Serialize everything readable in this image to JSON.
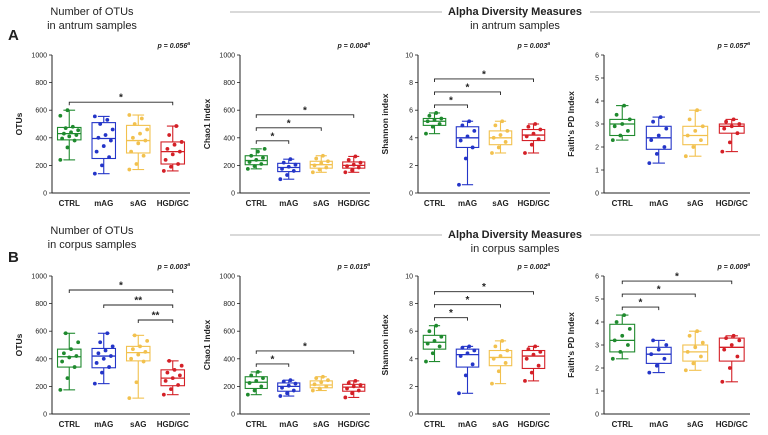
{
  "colors": {
    "CTRL": "#1f8a2e",
    "mAG": "#2435c8",
    "sAG": "#f2c14e",
    "HGD/GC": "#d42027",
    "axis": "#222222",
    "rule": "#9a9a9a"
  },
  "headers": {
    "A": {
      "line1": "Number of OTUs",
      "line2": "in antrum samples"
    },
    "B": {
      "line1": "Number of OTUs",
      "line2": "in corpus samples"
    },
    "C": {
      "line1": "Alpha Diversity Measures",
      "line2": "in antrum samples"
    },
    "D": {
      "line1": "Alpha Diversity Measures",
      "line2": "in corpus samples"
    }
  },
  "chart_data": [
    {
      "id": "A",
      "type": "box",
      "letter": "A",
      "ylabel": "OTUs",
      "ylim": [
        0,
        1000
      ],
      "yticks": [
        0,
        200,
        400,
        600,
        800,
        1000
      ],
      "categories": [
        "CTRL",
        "mAG",
        "sAG",
        "HGD/GC"
      ],
      "pvalue": "p = 0.056",
      "pvalue_sup": "a",
      "boxes": [
        {
          "min": 240,
          "q1": 385,
          "median": 430,
          "q3": 475,
          "max": 600,
          "points": [
            240,
            330,
            380,
            395,
            410,
            420,
            430,
            440,
            455,
            470,
            480,
            560,
            600
          ]
        },
        {
          "min": 140,
          "q1": 250,
          "median": 395,
          "q3": 510,
          "max": 555,
          "points": [
            140,
            200,
            260,
            300,
            340,
            380,
            400,
            420,
            460,
            500,
            530,
            555
          ]
        },
        {
          "min": 170,
          "q1": 290,
          "median": 380,
          "q3": 490,
          "max": 565,
          "points": [
            170,
            210,
            270,
            300,
            360,
            380,
            400,
            430,
            460,
            500,
            540,
            565
          ]
        },
        {
          "min": 160,
          "q1": 210,
          "median": 300,
          "q3": 370,
          "max": 485,
          "points": [
            160,
            190,
            210,
            240,
            280,
            300,
            320,
            350,
            370,
            420,
            485
          ]
        }
      ],
      "sig": [
        {
          "from": 0,
          "to": 3,
          "label": "*"
        }
      ]
    },
    {
      "id": "B",
      "type": "box",
      "letter": "B",
      "ylabel": "OTUs",
      "ylim": [
        0,
        1000
      ],
      "yticks": [
        0,
        200,
        400,
        600,
        800,
        1000
      ],
      "categories": [
        "CTRL",
        "mAG",
        "sAG",
        "HGD/GC"
      ],
      "pvalue": "p = 0.003",
      "pvalue_sup": "a",
      "boxes": [
        {
          "min": 175,
          "q1": 340,
          "median": 415,
          "q3": 470,
          "max": 585,
          "points": [
            175,
            260,
            340,
            380,
            410,
            420,
            440,
            470,
            520,
            585
          ]
        },
        {
          "min": 220,
          "q1": 335,
          "median": 420,
          "q3": 475,
          "max": 585,
          "points": [
            220,
            300,
            340,
            370,
            400,
            420,
            440,
            460,
            490,
            520,
            585
          ]
        },
        {
          "min": 115,
          "q1": 385,
          "median": 445,
          "q3": 490,
          "max": 570,
          "points": [
            115,
            230,
            380,
            400,
            430,
            450,
            470,
            490,
            530,
            570
          ]
        },
        {
          "min": 140,
          "q1": 205,
          "median": 260,
          "q3": 320,
          "max": 385,
          "points": [
            140,
            180,
            210,
            240,
            260,
            280,
            300,
            320,
            350,
            385
          ]
        }
      ],
      "sig": [
        {
          "from": 0,
          "to": 3,
          "label": "*"
        },
        {
          "from": 1,
          "to": 3,
          "label": "**"
        },
        {
          "from": 2,
          "to": 3,
          "label": "**"
        }
      ]
    },
    {
      "id": "C1",
      "type": "box",
      "ylabel": "Chao1 Index",
      "ylim": [
        0,
        1000
      ],
      "yticks": [
        0,
        200,
        400,
        600,
        800,
        1000
      ],
      "categories": [
        "CTRL",
        "mAG",
        "sAG",
        "HGD/GC"
      ],
      "pvalue": "p = 0.004",
      "pvalue_sup": "a",
      "boxes": [
        {
          "min": 175,
          "q1": 205,
          "median": 235,
          "q3": 270,
          "max": 320,
          "points": [
            175,
            195,
            210,
            225,
            240,
            255,
            270,
            300,
            320
          ]
        },
        {
          "min": 100,
          "q1": 155,
          "median": 185,
          "q3": 215,
          "max": 245,
          "points": [
            100,
            130,
            160,
            175,
            190,
            205,
            220,
            245
          ]
        },
        {
          "min": 150,
          "q1": 180,
          "median": 205,
          "q3": 230,
          "max": 270,
          "points": [
            150,
            170,
            185,
            200,
            215,
            230,
            250,
            270
          ]
        },
        {
          "min": 150,
          "q1": 180,
          "median": 200,
          "q3": 225,
          "max": 265,
          "points": [
            150,
            165,
            185,
            195,
            205,
            220,
            240,
            265
          ]
        }
      ],
      "sig": [
        {
          "from": 0,
          "to": 1,
          "label": "*"
        },
        {
          "from": 0,
          "to": 2,
          "label": "*"
        },
        {
          "from": 0,
          "to": 3,
          "label": "*"
        }
      ]
    },
    {
      "id": "C2",
      "type": "box",
      "ylabel": "Shannon index",
      "ylim": [
        0,
        10
      ],
      "yticks": [
        0,
        2,
        4,
        6,
        8,
        10
      ],
      "categories": [
        "CTRL",
        "mAG",
        "sAG",
        "HGD/GC"
      ],
      "pvalue": "p = 0.003",
      "pvalue_sup": "a",
      "boxes": [
        {
          "min": 4.3,
          "q1": 4.9,
          "median": 5.2,
          "q3": 5.4,
          "max": 5.8,
          "points": [
            4.3,
            4.8,
            5.0,
            5.2,
            5.3,
            5.4,
            5.6,
            5.8
          ]
        },
        {
          "min": 0.6,
          "q1": 3.3,
          "median": 4.0,
          "q3": 4.8,
          "max": 5.2,
          "points": [
            0.6,
            2.5,
            3.3,
            3.8,
            4.1,
            4.5,
            4.9,
            5.2
          ]
        },
        {
          "min": 2.9,
          "q1": 3.5,
          "median": 4.0,
          "q3": 4.5,
          "max": 5.2,
          "points": [
            2.9,
            3.3,
            3.7,
            4.0,
            4.2,
            4.5,
            4.9,
            5.2
          ]
        },
        {
          "min": 2.9,
          "q1": 3.8,
          "median": 4.2,
          "q3": 4.6,
          "max": 5.0,
          "points": [
            2.9,
            3.5,
            3.9,
            4.1,
            4.3,
            4.6,
            4.8,
            5.0
          ]
        }
      ],
      "sig": [
        {
          "from": 0,
          "to": 1,
          "label": "*"
        },
        {
          "from": 0,
          "to": 2,
          "label": "*"
        },
        {
          "from": 0,
          "to": 3,
          "label": "*"
        }
      ]
    },
    {
      "id": "C3",
      "type": "box",
      "ylabel": "Faith's PD Index",
      "ylim": [
        0,
        6
      ],
      "yticks": [
        0,
        1,
        2,
        3,
        4,
        5,
        6
      ],
      "categories": [
        "CTRL",
        "mAG",
        "sAG",
        "HGD/GC"
      ],
      "pvalue": "p = 0.057",
      "pvalue_sup": "a",
      "boxes": [
        {
          "min": 2.3,
          "q1": 2.5,
          "median": 3.0,
          "q3": 3.2,
          "max": 3.8,
          "points": [
            2.3,
            2.5,
            2.7,
            2.9,
            3.0,
            3.2,
            3.4,
            3.8
          ]
        },
        {
          "min": 1.3,
          "q1": 1.9,
          "median": 2.4,
          "q3": 2.9,
          "max": 3.3,
          "points": [
            1.3,
            1.7,
            2.0,
            2.3,
            2.5,
            2.8,
            3.1,
            3.3
          ]
        },
        {
          "min": 1.6,
          "q1": 2.1,
          "median": 2.5,
          "q3": 2.9,
          "max": 3.6,
          "points": [
            1.6,
            2.0,
            2.3,
            2.5,
            2.7,
            2.9,
            3.2,
            3.6
          ]
        },
        {
          "min": 1.8,
          "q1": 2.6,
          "median": 2.9,
          "q3": 3.0,
          "max": 3.2,
          "points": [
            1.8,
            2.2,
            2.6,
            2.8,
            2.9,
            3.0,
            3.1,
            3.2
          ]
        }
      ],
      "sig": []
    },
    {
      "id": "D1",
      "type": "box",
      "ylabel": "Chao1 Index",
      "ylim": [
        0,
        1000
      ],
      "yticks": [
        0,
        200,
        400,
        600,
        800,
        1000
      ],
      "categories": [
        "CTRL",
        "mAG",
        "sAG",
        "HGD/GC"
      ],
      "pvalue": "p = 0.015",
      "pvalue_sup": "a",
      "boxes": [
        {
          "min": 140,
          "q1": 185,
          "median": 230,
          "q3": 270,
          "max": 305,
          "points": [
            140,
            170,
            200,
            225,
            240,
            260,
            280,
            305
          ]
        },
        {
          "min": 130,
          "q1": 165,
          "median": 200,
          "q3": 225,
          "max": 245,
          "points": [
            130,
            150,
            170,
            190,
            205,
            220,
            235,
            245
          ]
        },
        {
          "min": 170,
          "q1": 190,
          "median": 210,
          "q3": 240,
          "max": 270,
          "points": [
            170,
            185,
            200,
            215,
            230,
            245,
            260,
            270
          ]
        },
        {
          "min": 120,
          "q1": 165,
          "median": 195,
          "q3": 215,
          "max": 240,
          "points": [
            120,
            150,
            170,
            185,
            200,
            210,
            225,
            240
          ]
        }
      ],
      "sig": [
        {
          "from": 0,
          "to": 1,
          "label": "*"
        },
        {
          "from": 0,
          "to": 3,
          "label": "*"
        }
      ]
    },
    {
      "id": "D2",
      "type": "box",
      "ylabel": "Shannon index",
      "ylim": [
        0,
        10
      ],
      "yticks": [
        0,
        2,
        4,
        6,
        8,
        10
      ],
      "categories": [
        "CTRL",
        "mAG",
        "sAG",
        "HGD/GC"
      ],
      "pvalue": "p = 0.002",
      "pvalue_sup": "a",
      "boxes": [
        {
          "min": 3.8,
          "q1": 4.7,
          "median": 5.2,
          "q3": 5.7,
          "max": 6.4,
          "points": [
            3.8,
            4.4,
            4.9,
            5.1,
            5.3,
            5.6,
            6.0,
            6.4
          ]
        },
        {
          "min": 1.5,
          "q1": 3.4,
          "median": 4.3,
          "q3": 4.7,
          "max": 4.9,
          "points": [
            1.5,
            2.8,
            3.6,
            4.2,
            4.4,
            4.6,
            4.8,
            4.9
          ]
        },
        {
          "min": 2.2,
          "q1": 3.5,
          "median": 4.1,
          "q3": 4.6,
          "max": 5.3,
          "points": [
            2.2,
            3.1,
            3.7,
            4.0,
            4.2,
            4.6,
            4.9,
            5.3
          ]
        },
        {
          "min": 2.4,
          "q1": 3.3,
          "median": 4.2,
          "q3": 4.6,
          "max": 4.9,
          "points": [
            2.4,
            3.0,
            3.5,
            4.0,
            4.3,
            4.5,
            4.7,
            4.9
          ]
        }
      ],
      "sig": [
        {
          "from": 0,
          "to": 1,
          "label": "*"
        },
        {
          "from": 0,
          "to": 2,
          "label": "*"
        },
        {
          "from": 0,
          "to": 3,
          "label": "*"
        }
      ]
    },
    {
      "id": "D3",
      "type": "box",
      "ylabel": "Faith's PD Index",
      "ylim": [
        0,
        6
      ],
      "yticks": [
        0,
        1,
        2,
        3,
        4,
        5,
        6
      ],
      "categories": [
        "CTRL",
        "mAG",
        "sAG",
        "HGD/GC"
      ],
      "pvalue": "p = 0.009",
      "pvalue_sup": "a",
      "boxes": [
        {
          "min": 2.4,
          "q1": 2.7,
          "median": 3.2,
          "q3": 3.9,
          "max": 4.3,
          "points": [
            2.4,
            2.7,
            3.0,
            3.2,
            3.4,
            3.7,
            4.0,
            4.3
          ]
        },
        {
          "min": 1.8,
          "q1": 2.2,
          "median": 2.6,
          "q3": 2.9,
          "max": 3.2,
          "points": [
            1.8,
            2.1,
            2.4,
            2.6,
            2.8,
            3.0,
            3.2
          ]
        },
        {
          "min": 1.9,
          "q1": 2.3,
          "median": 2.7,
          "q3": 3.0,
          "max": 3.6,
          "points": [
            1.9,
            2.2,
            2.5,
            2.7,
            2.9,
            3.1,
            3.4,
            3.6
          ]
        },
        {
          "min": 1.4,
          "q1": 2.3,
          "median": 2.9,
          "q3": 3.3,
          "max": 3.4,
          "points": [
            1.4,
            2.0,
            2.5,
            2.8,
            3.0,
            3.2,
            3.3,
            3.4
          ]
        }
      ],
      "sig": [
        {
          "from": 0,
          "to": 1,
          "label": "*"
        },
        {
          "from": 0,
          "to": 2,
          "label": "*"
        },
        {
          "from": 0,
          "to": 3,
          "label": "*"
        }
      ]
    }
  ]
}
